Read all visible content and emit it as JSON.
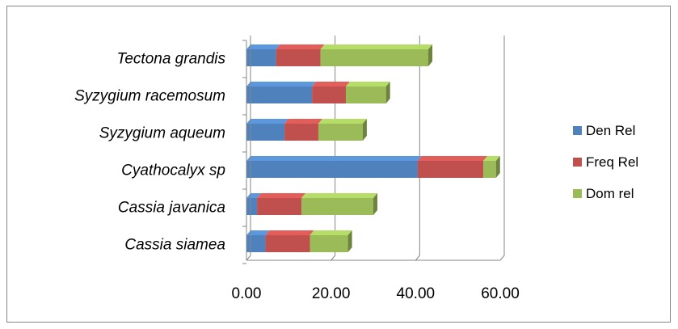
{
  "chart_data": {
    "type": "bar",
    "orientation": "horizontal",
    "stacked": true,
    "style": "3d",
    "categories": [
      "Cassia siamea",
      "Cassia javanica",
      "Cyathocalyx sp",
      "Syzygium aqueum",
      "Syzygium racemosum",
      "Tectona grandis"
    ],
    "series": [
      {
        "name": "Den Rel",
        "color": "#4F81BD",
        "values": [
          4.5,
          2.5,
          40.5,
          9.0,
          15.5,
          7.0
        ]
      },
      {
        "name": "Freq Rel",
        "color": "#C0504D",
        "values": [
          10.5,
          10.5,
          15.5,
          8.0,
          8.0,
          10.5
        ]
      },
      {
        "name": "Dom rel",
        "color": "#9BBB59",
        "values": [
          9.0,
          17.0,
          3.0,
          10.5,
          9.5,
          25.5
        ]
      }
    ],
    "x_ticks": [
      "0.00",
      "20.00",
      "40.00",
      "60.00"
    ],
    "xlim": [
      0,
      60
    ],
    "grid": "vertical major gridlines",
    "legend_position": "right"
  }
}
